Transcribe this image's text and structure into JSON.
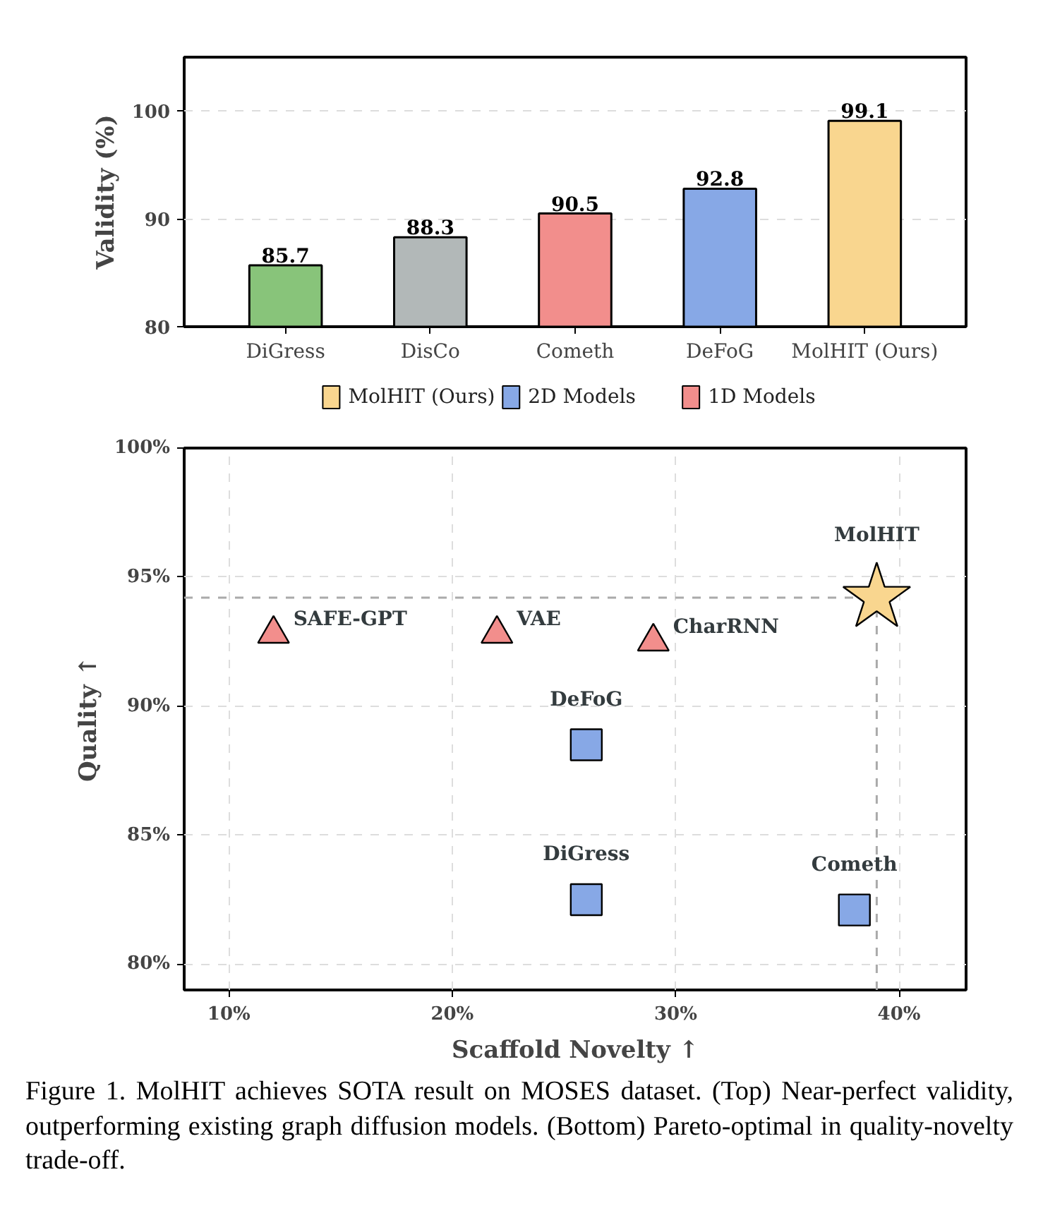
{
  "chart_data": [
    {
      "type": "bar",
      "ylabel": "Validity (%)",
      "categories": [
        "DiGress",
        "DisCo",
        "Cometh",
        "DeFoG",
        "MolHIT (Ours)"
      ],
      "values": [
        85.7,
        88.3,
        90.5,
        92.8,
        99.1
      ],
      "colors": [
        "#88c47a",
        "#b2b8b8",
        "#f28e8c",
        "#87a8e6",
        "#f9d68f"
      ],
      "ylim": [
        80,
        105
      ],
      "yticks": [
        80,
        90,
        100
      ],
      "grid": "y",
      "data_labels": true
    },
    {
      "type": "scatter",
      "xlabel": "Scaffold Novelty ↑",
      "ylabel": "Quality ↑",
      "series": [
        {
          "name": "MolHIT (Ours)",
          "color": "#f9d68f",
          "marker": "star",
          "x": [
            39
          ],
          "values": [
            94.2
          ]
        },
        {
          "name": "2D Models",
          "color": "#87a8e6",
          "marker": "square",
          "x": [
            26,
            26,
            38
          ],
          "values": [
            88.5,
            82.5,
            82.1
          ]
        },
        {
          "name": "1D Models",
          "color": "#f28e8c",
          "marker": "triangle",
          "x": [
            12,
            22,
            29
          ],
          "values": [
            92.8,
            92.8,
            92.5
          ]
        }
      ],
      "xlim": [
        8,
        43
      ],
      "xticks": [
        {
          "value": 10,
          "label": "10%"
        },
        {
          "value": 20,
          "label": "20%"
        },
        {
          "value": 30,
          "label": "30%"
        },
        {
          "value": 40,
          "label": "40%"
        }
      ],
      "ylim": [
        79,
        100
      ],
      "yticks": [
        {
          "value": 80,
          "label": "80%"
        },
        {
          "value": 85,
          "label": "85%"
        },
        {
          "value": 90,
          "label": "90%"
        },
        {
          "value": 95,
          "label": "95%"
        },
        {
          "value": 100,
          "label": "100%"
        }
      ],
      "grid": true,
      "legend": "top",
      "ref_lines": [
        {
          "axis": "x",
          "value": 39,
          "color": "#aaaaaa",
          "line_style": "dashed"
        },
        {
          "axis": "y",
          "value": 94.2,
          "color": "#aaaaaa",
          "line_style": "dashed"
        }
      ],
      "annotations": [
        {
          "text": "MolHIT",
          "x": 39,
          "y": 94.2
        },
        {
          "text": "DeFoG",
          "x": 26,
          "y": 88.5
        },
        {
          "text": "DiGress",
          "x": 26,
          "y": 82.5
        },
        {
          "text": "Cometh",
          "x": 38,
          "y": 82.1
        },
        {
          "text": "SAFE-GPT",
          "x": 12,
          "y": 92.8
        },
        {
          "text": "VAE",
          "x": 22,
          "y": 92.8
        },
        {
          "text": "CharRNN",
          "x": 29,
          "y": 92.5
        },
        "Figure 1.  MolHIT achieves SOTA result on MOSES dataset. (Top) Near-perfect validity, outperforming existing graph diffusion models. (Bottom) Pareto-optimal in quality-novelty trade-off."
      ]
    }
  ]
}
